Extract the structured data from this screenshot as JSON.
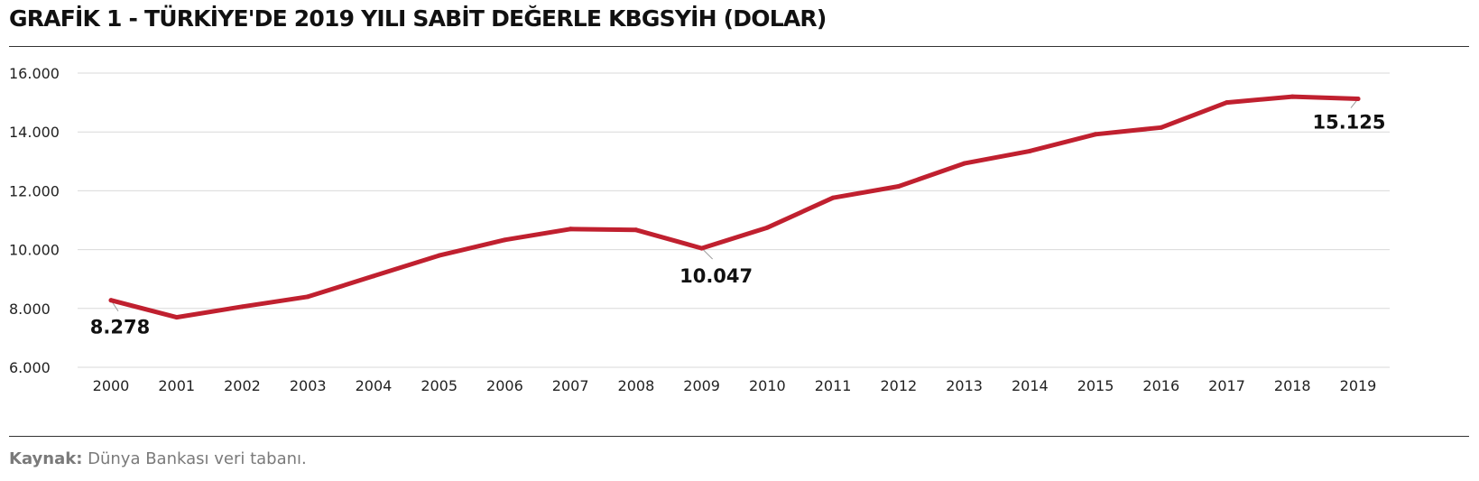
{
  "title": "GRAFİK 1 - TÜRKİYE'DE 2019 YILI SABİT DEĞERLE KBGSYİH (DOLAR)",
  "source": {
    "label": "Kaynak:",
    "text": " Dünya Bankası veri tabanı."
  },
  "colors": {
    "line": "#c0202f",
    "grid": "#d9d9d9",
    "text": "#111111"
  },
  "chart_data": {
    "type": "line",
    "title": "GRAFİK 1 - TÜRKİYE'DE 2019 YILI SABİT DEĞERLE KBGSYİH (DOLAR)",
    "xlabel": "",
    "ylabel": "",
    "x": [
      "2000",
      "2001",
      "2002",
      "2003",
      "2004",
      "2005",
      "2006",
      "2007",
      "2008",
      "2009",
      "2010",
      "2011",
      "2012",
      "2013",
      "2014",
      "2015",
      "2016",
      "2017",
      "2018",
      "2019"
    ],
    "series": [
      {
        "values": [
          8278,
          7700,
          8060,
          8400,
          9100,
          9800,
          10330,
          10700,
          10670,
          10047,
          10750,
          11760,
          12150,
          12930,
          13350,
          13920,
          14150,
          15000,
          15200,
          15125
        ]
      }
    ],
    "ylim": [
      6000,
      16000
    ],
    "yticks": [
      6000,
      8000,
      10000,
      12000,
      14000,
      16000
    ],
    "ytick_labels": [
      "6.000",
      "8.000",
      "10.000",
      "12.000",
      "14.000",
      "16.000"
    ],
    "grid": true,
    "legend": "none",
    "annotations": [
      {
        "index": 0,
        "text": "8.278"
      },
      {
        "index": 9,
        "text": "10.047"
      },
      {
        "index": 19,
        "text": "15.125"
      }
    ]
  }
}
